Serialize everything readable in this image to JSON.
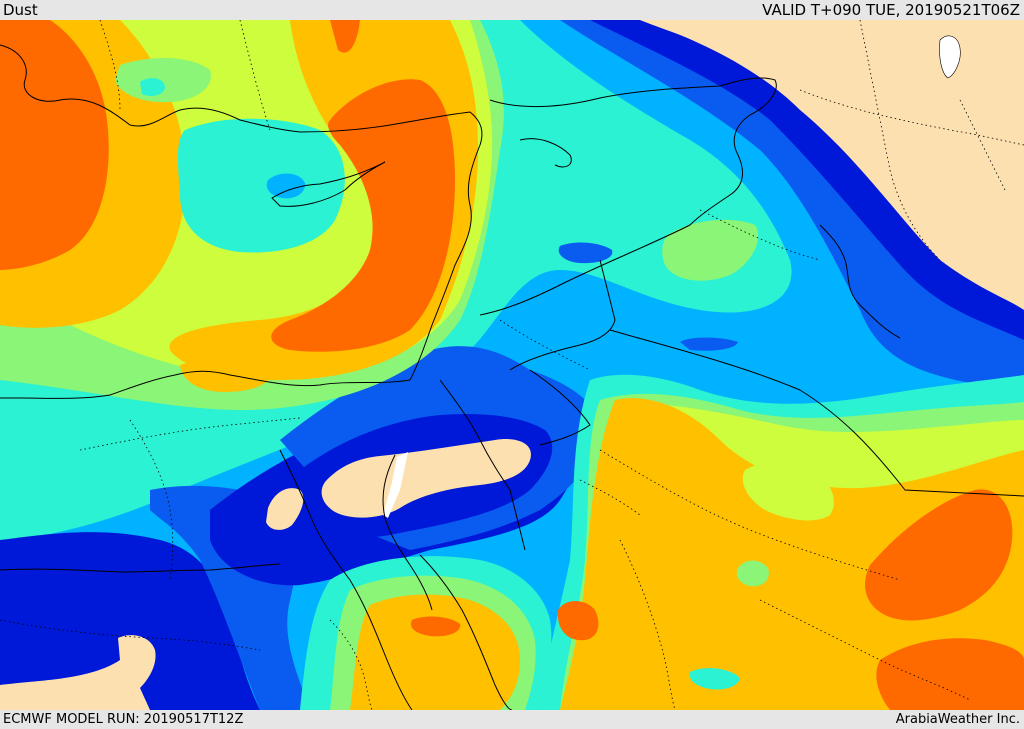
{
  "header": {
    "product": "Dust",
    "valid_time": "VALID T+090 TUE, 20190521T06Z"
  },
  "footer": {
    "model_run": "ECMWF MODEL RUN: 20190517T12Z",
    "credit": "ArabiaWeather Inc."
  },
  "palette": {
    "land_none": "#fde0b0",
    "dark_blue": "#0019d8",
    "blue": "#0a5cf0",
    "light_blue": "#00b2ff",
    "cyan": "#2bf2d2",
    "green": "#8af576",
    "yellow_green": "#cdfd3c",
    "orange_yellow": "#ffc000",
    "orange": "#ff6a00"
  }
}
